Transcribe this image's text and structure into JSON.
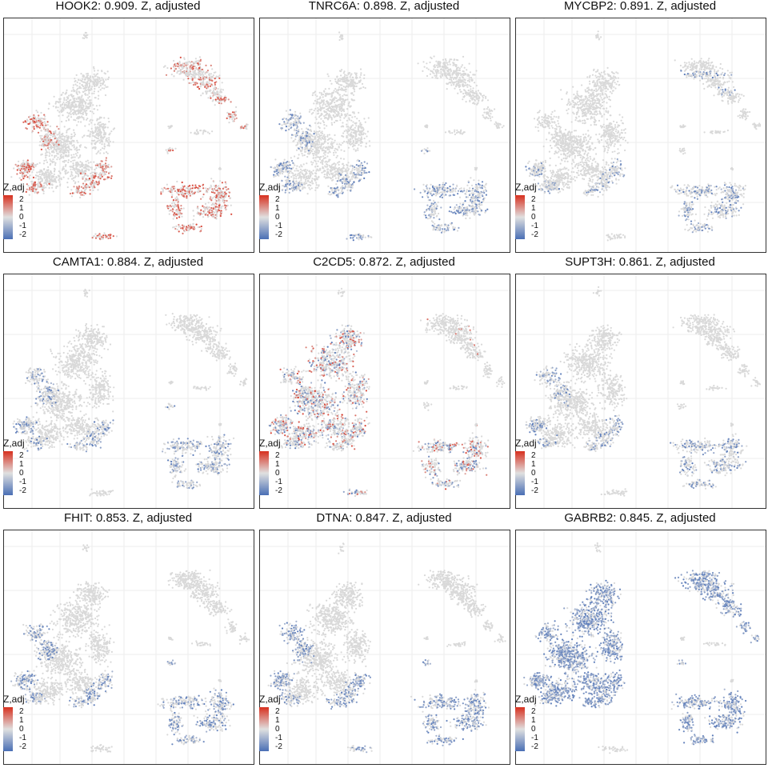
{
  "figure": {
    "color_scale": {
      "low": "#4a6fb5",
      "mid": "#e0e0e0",
      "high": "#d7301f",
      "base_point": "#d9d9d9"
    }
  },
  "chart_data": [
    {
      "type": "scatter",
      "title": "HOOK2: 0.909. Z, adjusted",
      "gene": "HOOK2",
      "score": 0.909,
      "legend_title": "Z,adj",
      "legend_ticks": [
        "2",
        "1",
        "0",
        "-1",
        "-2"
      ],
      "scale_range": [
        -2.5,
        2.5
      ],
      "pattern": "red",
      "intensity": 0.5,
      "hot_regions": [
        "left-lobe-edge",
        "lower-left-cluster",
        "right-ring",
        "small-right-blob",
        "bottom-strip",
        "upper-right-core"
      ]
    },
    {
      "type": "scatter",
      "title": "TNRC6A: 0.898. Z, adjusted",
      "gene": "TNRC6A",
      "score": 0.898,
      "legend_title": "Z,adj",
      "legend_ticks": [
        "2",
        "1",
        "0",
        "-1",
        "-2"
      ],
      "scale_range": [
        -2.5,
        2.5
      ],
      "pattern": "blue",
      "intensity": 0.45,
      "hot_regions": [
        "left-lobe-edge",
        "lower-left-cluster",
        "bottom-strip",
        "small-right-blob",
        "right-ring"
      ]
    },
    {
      "type": "scatter",
      "title": "MYCBP2: 0.891. Z, adjusted",
      "gene": "MYCBP2",
      "score": 0.891,
      "legend_title": "Z,adj",
      "legend_ticks": [
        "2",
        "1",
        "0",
        "-1",
        "-2"
      ],
      "scale_range": [
        -2.5,
        2.5
      ],
      "pattern": "blue",
      "intensity": 0.3,
      "hot_regions": [
        "lower-left-cluster",
        "right-ring",
        "upper-right-band"
      ]
    },
    {
      "type": "scatter",
      "title": "CAMTA1: 0.884. Z, adjusted",
      "gene": "CAMTA1",
      "score": 0.884,
      "legend_title": "Z,adj",
      "legend_ticks": [
        "2",
        "1",
        "0",
        "-1",
        "-2"
      ],
      "scale_range": [
        -2.5,
        2.5
      ],
      "pattern": "blue",
      "intensity": 0.35,
      "hot_regions": [
        "left-lobe-edge",
        "small-right-blob",
        "right-ring",
        "lower-left-cluster"
      ]
    },
    {
      "type": "scatter",
      "title": "C2CD5: 0.872. Z, adjusted",
      "gene": "C2CD5",
      "score": 0.872,
      "legend_title": "Z,adj",
      "legend_ticks": [
        "2",
        "1",
        "0",
        "-1",
        "-2"
      ],
      "scale_range": [
        -2.5,
        2.5
      ],
      "pattern": "mixed",
      "intensity": 0.35,
      "hot_regions": [
        "left-lobe-edge",
        "lower-left-cluster",
        "bottom-strip",
        "right-ring",
        "central-mass"
      ]
    },
    {
      "type": "scatter",
      "title": "SUPT3H: 0.861. Z, adjusted",
      "gene": "SUPT3H",
      "score": 0.861,
      "legend_title": "Z,adj",
      "legend_ticks": [
        "2",
        "1",
        "0",
        "-1",
        "-2"
      ],
      "scale_range": [
        -2.5,
        2.5
      ],
      "pattern": "blue",
      "intensity": 0.35,
      "hot_regions": [
        "right-ring",
        "lower-left-cluster",
        "left-lobe-edge"
      ]
    },
    {
      "type": "scatter",
      "title": "FHIT: 0.853. Z, adjusted",
      "gene": "FHIT",
      "score": 0.853,
      "legend_title": "Z,adj",
      "legend_ticks": [
        "2",
        "1",
        "0",
        "-1",
        "-2"
      ],
      "scale_range": [
        -2.5,
        2.5
      ],
      "pattern": "blue",
      "intensity": 0.45,
      "hot_regions": [
        "right-ring",
        "small-right-blob",
        "lower-left-cluster",
        "left-lobe-edge"
      ]
    },
    {
      "type": "scatter",
      "title": "DTNA: 0.847. Z, adjusted",
      "gene": "DTNA",
      "score": 0.847,
      "legend_title": "Z,adj",
      "legend_ticks": [
        "2",
        "1",
        "0",
        "-1",
        "-2"
      ],
      "scale_range": [
        -2.5,
        2.5
      ],
      "pattern": "blue",
      "intensity": 0.55,
      "hot_regions": [
        "right-ring",
        "small-right-blob",
        "bottom-strip",
        "lower-left-cluster",
        "left-lobe-edge"
      ]
    },
    {
      "type": "scatter",
      "title": "GABRB2: 0.845. Z, adjusted",
      "gene": "GABRB2",
      "score": 0.845,
      "legend_title": "Z,adj",
      "legend_ticks": [
        "2",
        "1",
        "0",
        "-1",
        "-2"
      ],
      "scale_range": [
        -2.5,
        2.5
      ],
      "pattern": "blue",
      "intensity": 0.7,
      "hot_regions": [
        "upper-right-band",
        "upper-right-core",
        "right-ring",
        "small-right-blob",
        "central-mass",
        "left-lobe-edge",
        "lower-left-cluster"
      ]
    }
  ]
}
